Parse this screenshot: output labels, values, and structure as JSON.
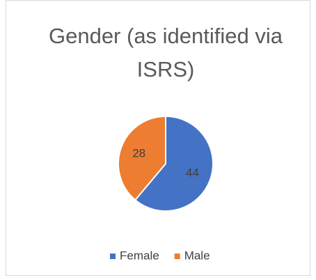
{
  "chart_data": {
    "type": "pie",
    "title": "Gender (as identified via ISRS)",
    "categories": [
      "Female",
      "Male"
    ],
    "values": [
      44,
      28
    ],
    "colors": [
      "#4472c4",
      "#ed7d31"
    ],
    "legend": "bottom"
  }
}
